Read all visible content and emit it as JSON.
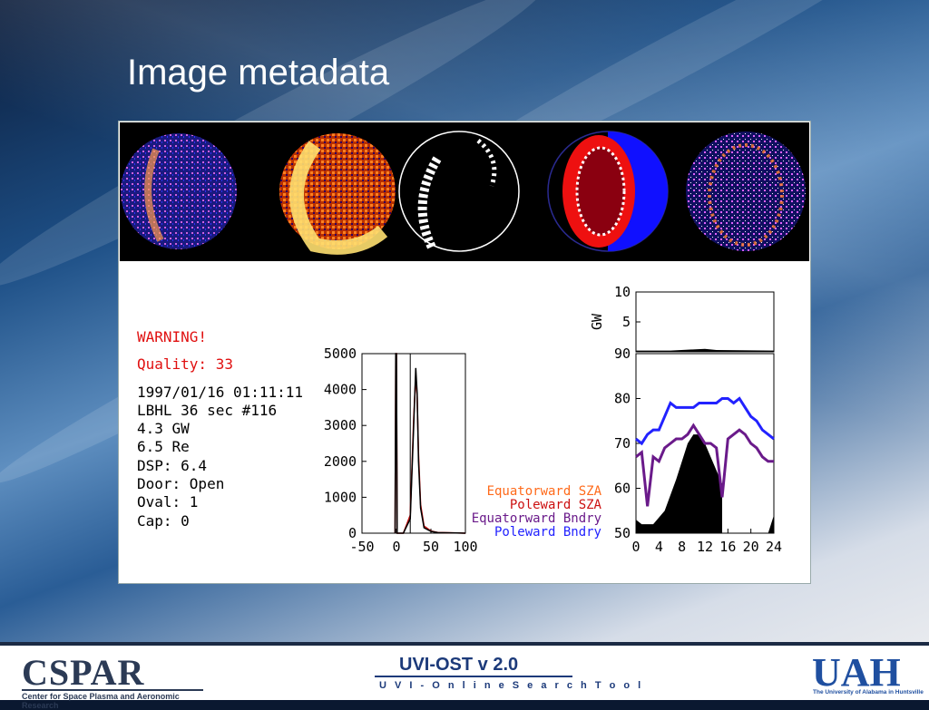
{
  "slide": {
    "title": "Image metadata"
  },
  "info": {
    "warning": "WARNING!",
    "quality": "Quality: 33",
    "lines": [
      "1997/01/16 01:11:11",
      "LBHL 36 sec #116",
      "4.3 GW",
      "6.5 Re",
      "DSP: 6.4",
      "Door: Open",
      "Oval: 1",
      "Cap:  0"
    ]
  },
  "colors": {
    "warning": "#e01010",
    "equatorward_sza": "#ff6a1a",
    "poleward_sza": "#cc1010",
    "equatorward_bndry": "#6a1a8a",
    "poleward_bndry": "#2222ff"
  },
  "chart_data": [
    {
      "type": "line",
      "name": "histogram",
      "xlim": [
        -50,
        100
      ],
      "ylim": [
        0,
        5000
      ],
      "xticks": [
        "-50",
        "0",
        "50",
        "100"
      ],
      "yticks": [
        "0",
        "1000",
        "2000",
        "3000",
        "4000",
        "5000"
      ],
      "series": [
        {
          "x": [
            -2,
            -1,
            0,
            1,
            2,
            5,
            10,
            20,
            25,
            28,
            30,
            32,
            35,
            40,
            50,
            60,
            100
          ],
          "values": [
            0,
            5000,
            5000,
            0,
            0,
            0,
            0,
            500,
            3200,
            4400,
            3800,
            2200,
            800,
            200,
            60,
            20,
            0
          ]
        },
        {
          "x": [
            -2,
            -1,
            0,
            1,
            2,
            5,
            10,
            20,
            25,
            28,
            30,
            32,
            35,
            40,
            50,
            60,
            100
          ],
          "values": [
            0,
            5000,
            5000,
            0,
            0,
            0,
            0,
            400,
            3000,
            4600,
            3900,
            2000,
            700,
            150,
            50,
            15,
            0
          ]
        }
      ]
    },
    {
      "type": "area",
      "name": "gw",
      "ylabel": "GW",
      "xlim": [
        0,
        24
      ],
      "ylim": [
        0,
        10
      ],
      "yticks": [
        "0",
        "5",
        "10"
      ],
      "series": [
        {
          "x": [
            0,
            6,
            10,
            12,
            14,
            24
          ],
          "values": [
            0.2,
            0.2,
            0.4,
            0.5,
            0.3,
            0.2
          ]
        }
      ]
    },
    {
      "type": "line",
      "name": "boundaries",
      "xlim": [
        0,
        24
      ],
      "ylim": [
        50,
        90
      ],
      "xticks": [
        "0",
        "4",
        "8",
        "12",
        "16",
        "20",
        "24"
      ],
      "yticks": [
        "50",
        "60",
        "70",
        "80",
        "90"
      ],
      "legend": [
        "Equatorward SZA",
        "Poleward SZA",
        "Equatorward Bndry",
        "Poleward Bndry"
      ],
      "sza_fill": {
        "x": [
          0,
          1,
          3,
          5,
          7,
          9,
          10,
          11,
          12,
          13,
          14,
          15,
          15
        ],
        "values": [
          53,
          52,
          52,
          55,
          62,
          70,
          72,
          72,
          70,
          67,
          64,
          61,
          50
        ]
      },
      "sza_fill2": {
        "x": [
          23,
          24,
          24
        ],
        "values": [
          50,
          54,
          50
        ]
      },
      "series": [
        {
          "name": "Poleward Bndry",
          "x": [
            0,
            1,
            2,
            3,
            4,
            5,
            6,
            7,
            8,
            9,
            10,
            11,
            12,
            13,
            14,
            15,
            16,
            17,
            18,
            19,
            20,
            21,
            22,
            23,
            24
          ],
          "values": [
            71,
            70,
            72,
            73,
            73,
            76,
            79,
            78,
            78,
            78,
            78,
            79,
            79,
            79,
            79,
            80,
            80,
            79,
            80,
            78,
            76,
            75,
            73,
            72,
            71
          ]
        },
        {
          "name": "Equatorward Bndry",
          "x": [
            0,
            1,
            2,
            3,
            4,
            5,
            6,
            7,
            8,
            9,
            10,
            11,
            12,
            13,
            14,
            15,
            16,
            17,
            18,
            19,
            20,
            21,
            22,
            23,
            24
          ],
          "values": [
            67,
            68,
            56,
            67,
            66,
            69,
            70,
            71,
            71,
            72,
            74,
            72,
            70,
            70,
            69,
            58,
            71,
            72,
            73,
            72,
            70,
            69,
            67,
            66,
            66
          ]
        }
      ]
    }
  ],
  "footer": {
    "left_logo": "CSPAR",
    "left_sub": "Center for Space Plasma and Aeronomic Research",
    "center_title": "UVI-OST  v 2.0",
    "center_sub": "U V I - O n l i n e   S e a r c h   T o o l",
    "right_logo": "UAH",
    "right_sub": "The University of Alabama in Huntsville"
  }
}
